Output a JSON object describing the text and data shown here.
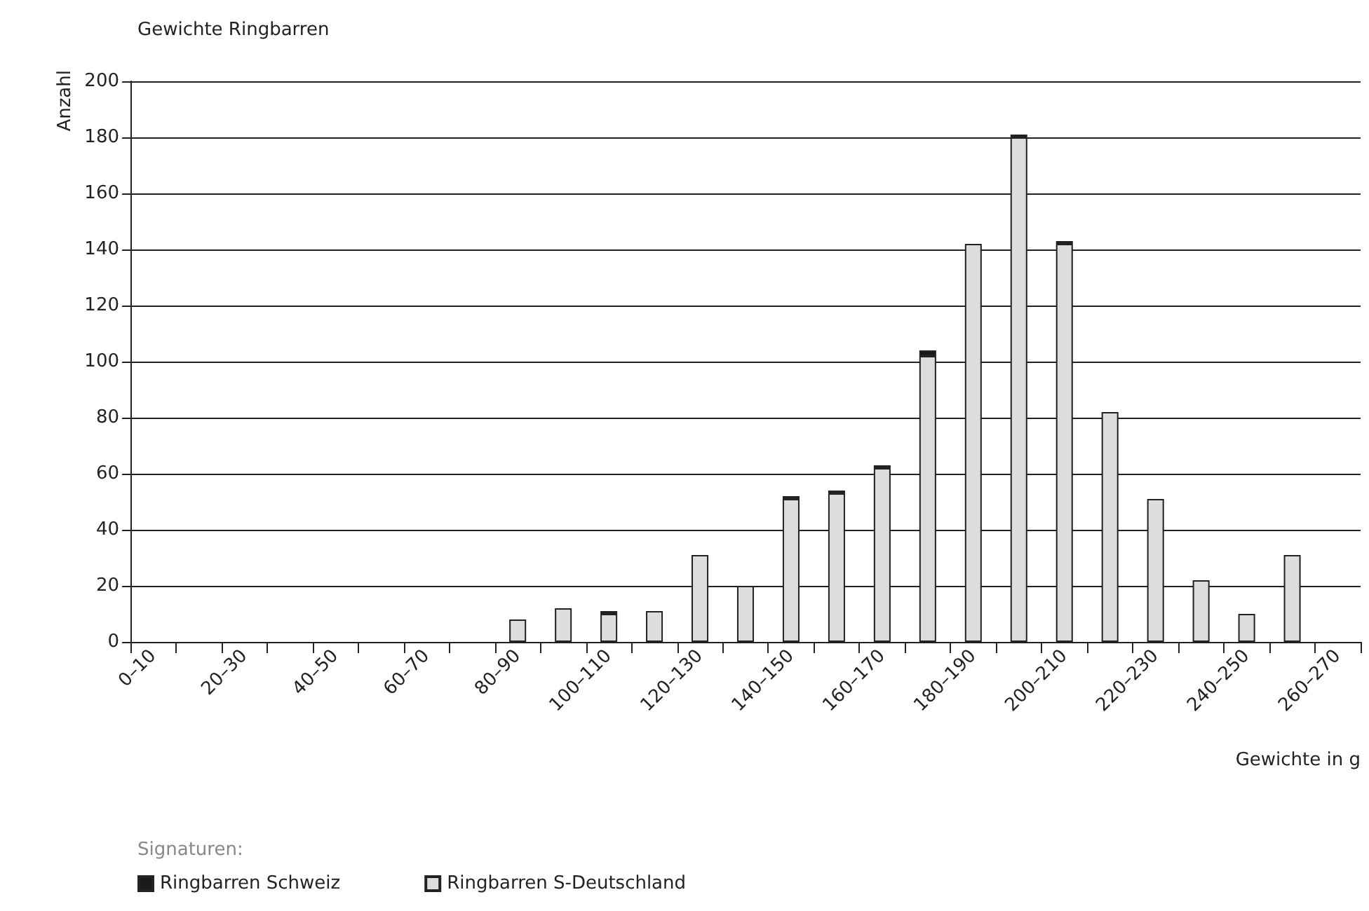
{
  "chart_data": {
    "type": "bar",
    "title": "Gewichte Ringbarren",
    "xlabel": "Gewichte in g",
    "ylabel": "Anzahl",
    "legend_title": "Signaturen:",
    "categories": [
      "0–10",
      null,
      "20–30",
      null,
      "40–50",
      null,
      "60–70",
      null,
      "80–90",
      null,
      "100–110",
      null,
      "120–130",
      null,
      "140–150",
      null,
      "160–170",
      null,
      "180–190",
      null,
      "200–210",
      null,
      "220–230",
      null,
      "240–250",
      null,
      "260–270"
    ],
    "series": [
      {
        "name": "Ringbarren S-Deutschland",
        "color": "#dcdddf",
        "values": [
          0,
          0,
          0,
          0,
          0,
          0,
          0,
          0,
          8,
          12,
          10,
          11,
          31,
          20,
          51,
          53,
          62,
          102,
          142,
          180,
          142,
          82,
          51,
          22,
          10,
          31,
          0
        ]
      },
      {
        "name": "Ringbarren Schweiz",
        "color": "#1a1a1a",
        "values": [
          0,
          0,
          0,
          0,
          0,
          0,
          0,
          0,
          0,
          0,
          1,
          0,
          0,
          0,
          1,
          1,
          1,
          2,
          0,
          1,
          1,
          0,
          0,
          0,
          0,
          0,
          0
        ]
      }
    ],
    "stacked": true,
    "ylim": [
      0,
      200
    ],
    "yticks": [
      0,
      20,
      40,
      60,
      80,
      100,
      120,
      140,
      160,
      180,
      200
    ],
    "grid": "y",
    "legend": "bottom left"
  }
}
